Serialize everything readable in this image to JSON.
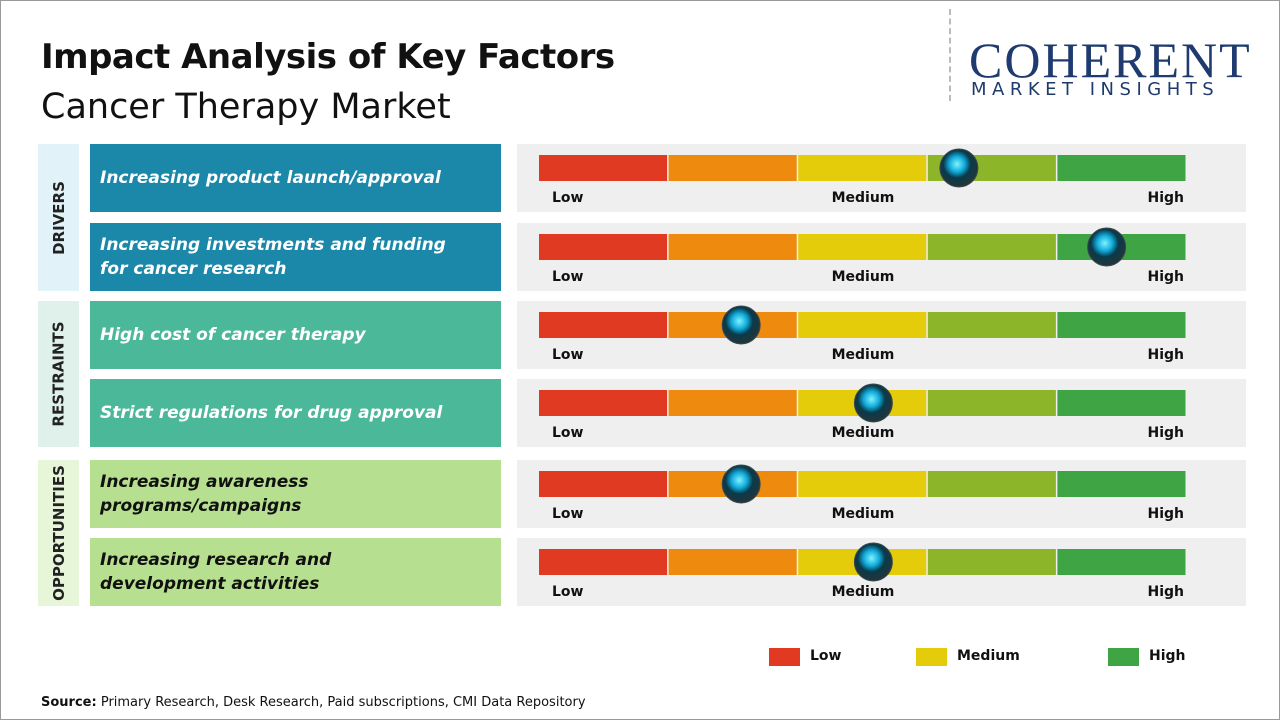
{
  "chart_data": {
    "type": "gauge",
    "title": "Impact Analysis of Key Factors",
    "subtitle": "Cancer Therapy Market",
    "xlim": [
      0,
      5
    ],
    "xticks": [
      {
        "value": 0,
        "label": "Low"
      },
      {
        "value": 2.5,
        "label": "Medium"
      },
      {
        "value": 5,
        "label": "High"
      }
    ],
    "segment_colors": [
      "#e03a22",
      "#ee8a0e",
      "#e5cc0a",
      "#8db52a",
      "#3fa443"
    ],
    "groups": [
      {
        "name": "DRIVERS",
        "color": "#1b87a9",
        "label_bg": "#e1f2f8",
        "text_color": "#ffffff",
        "factors": [
          "Increasing product launch/approval",
          "Increasing investments and funding for cancer research"
        ],
        "values": [
          3.24,
          4.38
        ]
      },
      {
        "name": "RESTRAINTS",
        "color": "#4cb89a",
        "label_bg": "#dff1ea",
        "text_color": "#ffffff",
        "factors": [
          "High cost of cancer therapy",
          "Strict regulations for drug approval"
        ],
        "values": [
          1.56,
          2.58
        ]
      },
      {
        "name": "OPPORTUNITIES",
        "color": "#b6e08f",
        "label_bg": "#e7f5d9",
        "text_color": "#111111",
        "factors": [
          "Increasing awareness programs/campaigns",
          "Increasing research and development activities"
        ],
        "values": [
          1.56,
          2.58
        ]
      }
    ],
    "legend": [
      {
        "name": "Low",
        "color": "#e03a22"
      },
      {
        "name": "Medium",
        "color": "#e5cc0a"
      },
      {
        "name": "High",
        "color": "#3fa443"
      }
    ]
  },
  "logo": {
    "name": "COHERENT",
    "tagline": "MARKET INSIGHTS"
  },
  "source": {
    "label": "Source:",
    "text": "Primary Research, Desk Research, Paid subscriptions, CMI Data Repository"
  }
}
